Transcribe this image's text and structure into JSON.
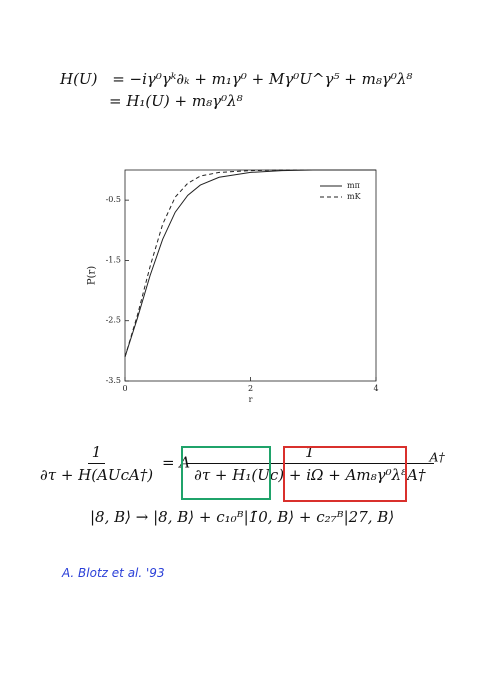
{
  "equations": {
    "line1_lhs": "H(U)",
    "line1_rhs": "= −iγ⁰γᵏ∂ₖ + m₁γ⁰ + Mγ⁰U^γ⁵ + m₈γ⁰λ⁸",
    "line2_rhs": "= H₁(U) + m₈γ⁰λ⁸",
    "frac_num": "1",
    "frac_den": "∂τ + H(AUcA†)",
    "equals_A": "= A",
    "inner_num": "1",
    "inner_den_green": "∂τ + H₁(Uc)",
    "inner_den_plus": "+",
    "inner_den_red": "iΩ + Am₈γ⁰λ⁸A†",
    "trailing": "A†",
    "line3": "|8, B⟩ → |8, B⟩ + c₁₀ᴮ|1̄0, B⟩ + c₂₇ᴮ|27, B⟩"
  },
  "chart_data": {
    "type": "line",
    "x_label": "r",
    "y_label": "P(r)",
    "x": [
      0,
      0.2,
      0.4,
      0.6,
      0.8,
      1.0,
      1.2,
      1.5,
      2,
      2.5,
      3,
      3.5,
      4
    ],
    "series": [
      {
        "name": "mπ",
        "color": "#222",
        "dash": "solid",
        "values": [
          -3.1,
          -2.45,
          -1.75,
          -1.15,
          -0.7,
          -0.42,
          -0.25,
          -0.12,
          -0.04,
          -0.01,
          0,
          0,
          0
        ]
      },
      {
        "name": "mK",
        "color": "#222",
        "dash": "dashed",
        "values": [
          -3.1,
          -2.4,
          -1.6,
          -0.9,
          -0.45,
          -0.22,
          -0.1,
          -0.04,
          -0.01,
          0,
          0,
          0,
          0
        ]
      }
    ],
    "xlim": [
      0,
      4
    ],
    "xticks": [
      0,
      2,
      4
    ],
    "ylim": [
      -3.5,
      0
    ],
    "yticks": [
      -0.5,
      -1.5,
      -2.5,
      -3.5
    ],
    "legend": "upper right"
  },
  "note": "A. Blotz et al. '93"
}
